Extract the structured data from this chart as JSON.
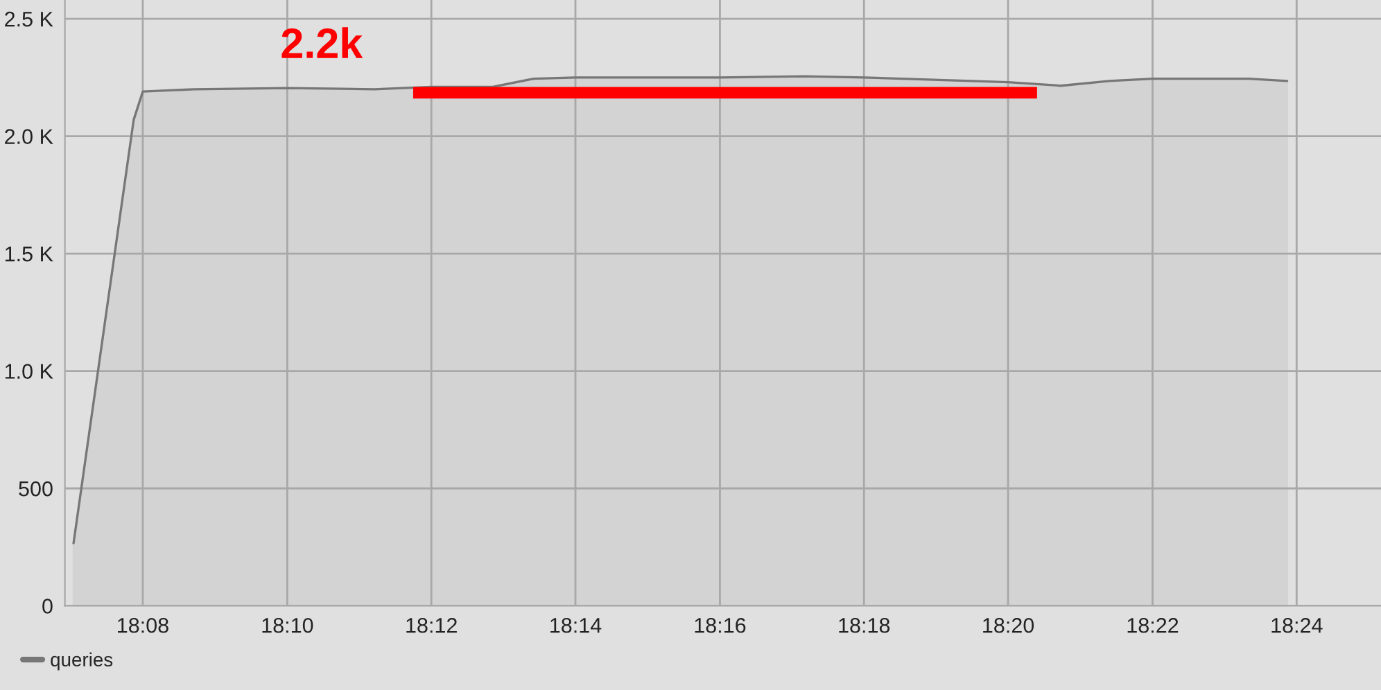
{
  "chart_data": {
    "type": "area",
    "x": [
      18.1173,
      18.1312,
      18.1333,
      18.1452,
      18.1667,
      18.1868,
      18.2,
      18.2142,
      18.2237,
      18.2333,
      18.2667,
      18.2862,
      18.3,
      18.3333,
      18.3455,
      18.3567,
      18.3667,
      18.3889,
      18.3978
    ],
    "series": [
      {
        "name": "queries",
        "color": "#777777",
        "values": [
          267,
          2070,
          2190,
          2200,
          2205,
          2200,
          2210,
          2210,
          2245,
          2250,
          2250,
          2255,
          2250,
          2230,
          2215,
          2235,
          2245,
          2245,
          2235
        ]
      },
      {
        "type": "line",
        "color": "#ff0000",
        "x": [
          18.1958,
          18.34
        ],
        "values": [
          2185,
          2185
        ]
      }
    ],
    "annotations": [
      "2.2k"
    ],
    "xlim": [
      18.1153,
      18.4195
    ],
    "ylim": [
      0,
      2580
    ],
    "xticks": [
      {
        "value": 18.1333,
        "label": "18:08"
      },
      {
        "value": 18.1667,
        "label": "18:10"
      },
      {
        "value": 18.2,
        "label": "18:12"
      },
      {
        "value": 18.2333,
        "label": "18:14"
      },
      {
        "value": 18.2667,
        "label": "18:16"
      },
      {
        "value": 18.3,
        "label": "18:18"
      },
      {
        "value": 18.3333,
        "label": "18:20"
      },
      {
        "value": 18.3667,
        "label": "18:22"
      },
      {
        "value": 18.4,
        "label": "18:24"
      }
    ],
    "yticks": [
      0,
      500,
      {
        "value": 1000,
        "label": "1.0 K"
      },
      {
        "value": 1500,
        "label": "1.5 K"
      },
      {
        "value": 2000,
        "label": "2.0 K"
      },
      {
        "value": 2500,
        "label": "2.5 K"
      }
    ],
    "grid": true,
    "legend": "bottom left"
  }
}
